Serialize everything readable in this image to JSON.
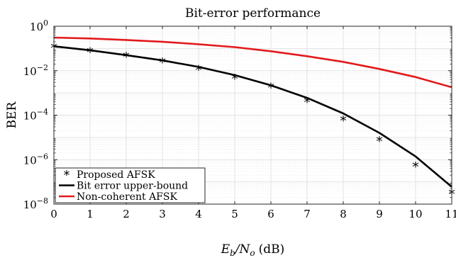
{
  "chart_data": {
    "type": "line",
    "title": "Bit-error performance",
    "xlabel": "E_b/N_o (dB)",
    "xlabel_parts": {
      "main": "E",
      "sub1": "b",
      "slash": "/N",
      "sub2": "o",
      "unit": "(dB)"
    },
    "ylabel": "BER",
    "xlim": [
      0,
      11
    ],
    "ylim": [
      1e-08,
      1
    ],
    "yscale": "log",
    "grid": true,
    "legend_position": "bottom-left",
    "x_ticks": [
      "0",
      "1",
      "2",
      "3",
      "4",
      "5",
      "6",
      "7",
      "8",
      "9",
      "10",
      "11"
    ],
    "y_ticks": [
      {
        "exp": -8,
        "base": "10",
        "sup": "−8"
      },
      {
        "exp": -6,
        "base": "10",
        "sup": "−6"
      },
      {
        "exp": -4,
        "base": "10",
        "sup": "−4"
      },
      {
        "exp": -2,
        "base": "10",
        "sup": "−2"
      },
      {
        "exp": 0,
        "base": "10",
        "sup": "0"
      }
    ],
    "series": [
      {
        "name": "Proposed AFSK",
        "style": "markers",
        "marker": "*",
        "color": "#000000",
        "x": [
          0,
          1,
          2,
          3,
          4,
          5,
          6,
          7,
          8,
          9,
          10,
          11
        ],
        "y": [
          0.11,
          0.072,
          0.045,
          0.025,
          0.0115,
          0.0045,
          0.0018,
          0.0004,
          6e-05,
          7e-06,
          5e-07,
          3e-08
        ]
      },
      {
        "name": "Bit error upper-bound",
        "style": "line",
        "color": "#000000",
        "x": [
          0,
          1,
          2,
          3,
          4,
          5,
          6,
          7,
          8,
          9,
          10,
          11
        ],
        "y": [
          0.125,
          0.083,
          0.05,
          0.029,
          0.0148,
          0.0063,
          0.0022,
          0.0006,
          0.00012,
          1.6e-05,
          1.4e-06,
          6e-08
        ]
      },
      {
        "name": "Non-coherent AFSK",
        "style": "line",
        "color": "#e31a1c",
        "x": [
          0,
          1,
          2,
          3,
          4,
          5,
          6,
          7,
          8,
          9,
          10,
          11
        ],
        "y": [
          0.31,
          0.28,
          0.24,
          0.2,
          0.155,
          0.115,
          0.075,
          0.045,
          0.025,
          0.012,
          0.0052,
          0.0018
        ]
      }
    ]
  }
}
